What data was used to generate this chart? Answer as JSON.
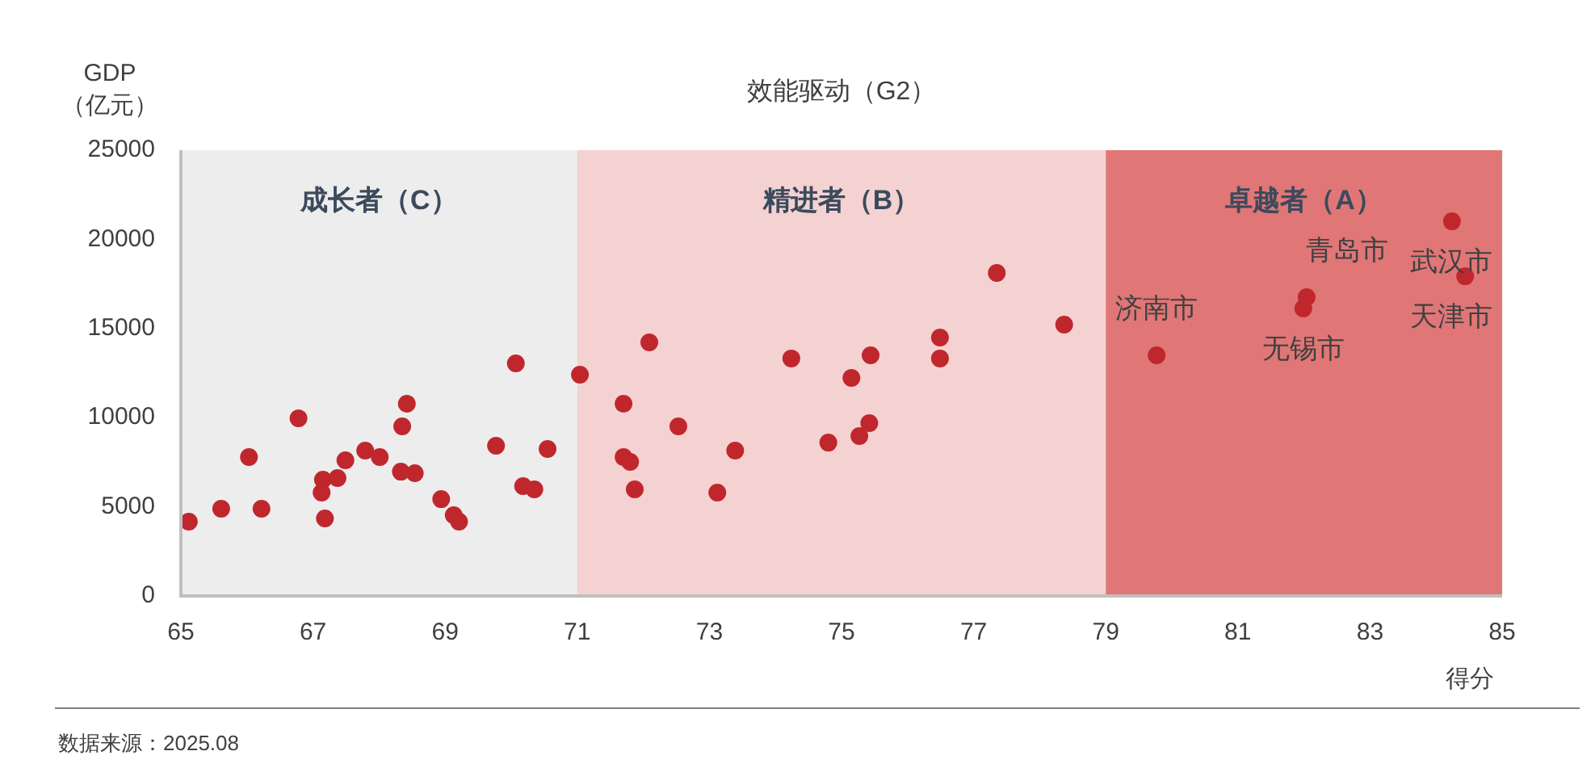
{
  "chart_data": {
    "type": "scatter",
    "title": "效能驱动（G2）",
    "xlabel": "得分",
    "ylabel": "GDP\n（亿元）",
    "x": [
      65.12,
      65.61,
      66.03,
      66.22,
      66.78,
      67.15,
      67.13,
      67.18,
      67.37,
      67.49,
      67.79,
      68.01,
      68.35,
      68.42,
      68.33,
      68.54,
      68.94,
      69.13,
      69.21,
      69.77,
      70.07,
      70.18,
      70.35,
      70.55,
      71.04,
      72.09,
      71.7,
      71.7,
      71.8,
      71.87,
      72.53,
      73.12,
      73.39,
      74.24,
      74.8,
      75.15,
      75.27,
      75.42,
      75.44,
      76.49,
      76.49,
      77.35,
      78.37,
      79.77,
      82.04,
      81.99,
      84.24,
      84.44
    ],
    "series": [
      {
        "color": "#c0272d",
        "values": [
          4170,
          4890,
          7790,
          4890,
          9960,
          6520,
          5800,
          4350,
          6610,
          7610,
          8150,
          7790,
          9510,
          10780,
          6970,
          6880,
          5430,
          4530,
          4170,
          8420,
          13040,
          6160,
          5980,
          8240,
          12410,
          14220,
          10780,
          7790,
          7520,
          5980,
          9510,
          5800,
          8150,
          13320,
          8600,
          12230,
          8970,
          9690,
          13500,
          14490,
          13320,
          18120,
          15220,
          13500,
          16760,
          16120,
          21010,
          17930
        ]
      }
    ],
    "xlim": [
      65,
      85
    ],
    "xticks": [
      65,
      67,
      69,
      71,
      73,
      75,
      77,
      79,
      81,
      83,
      85
    ],
    "ylim": [
      0,
      25000
    ],
    "yticks": [
      0,
      5000,
      10000,
      15000,
      20000,
      25000
    ],
    "grid": false,
    "legend": false,
    "marker": "circle",
    "bands": [
      {
        "axis": "x",
        "from": 65,
        "to": 71,
        "label": "成长者（C）",
        "color": "#ededed"
      },
      {
        "axis": "x",
        "from": 71,
        "to": 79,
        "label": "精进者（B）",
        "color": "#f4d2d2"
      },
      {
        "axis": "x",
        "from": 79,
        "to": 85,
        "label": "卓越者（A）",
        "color": "#e07676"
      }
    ],
    "annotations": [
      {
        "text": "济南市",
        "x": 79.77,
        "y": 13500
      },
      {
        "text": "青岛市",
        "x": 82.04,
        "y": 16760
      },
      {
        "text": "无锡市",
        "x": 81.99,
        "y": 16120
      },
      {
        "text": "武汉市",
        "x": 84.24,
        "y": 21010
      },
      {
        "text": "天津市",
        "x": 84.44,
        "y": 17930
      },
      "数据来源：2025.08"
    ]
  }
}
